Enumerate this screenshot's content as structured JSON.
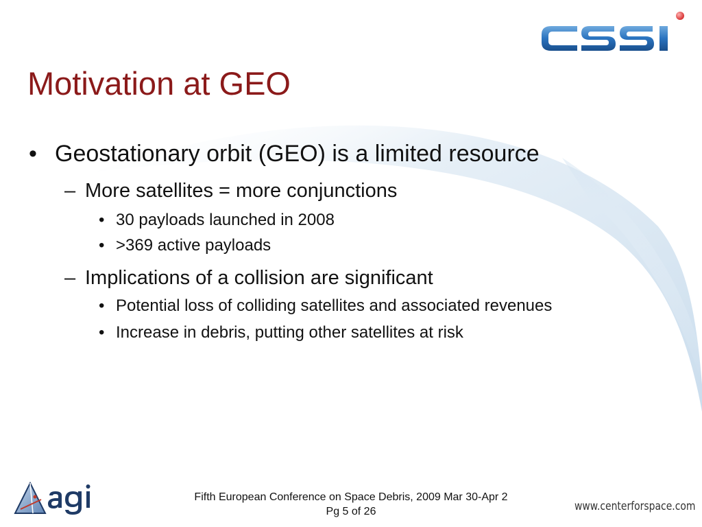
{
  "slide": {
    "title": "Motivation at GEO",
    "bullets": [
      {
        "level": 1,
        "marker": "•",
        "text": "Geostationary orbit (GEO) is a limited resource"
      },
      {
        "level": 2,
        "marker": "–",
        "text": "More satellites = more conjunctions"
      },
      {
        "level": 3,
        "marker": "•",
        "text": "30 payloads launched in 2008"
      },
      {
        "level": 3,
        "marker": "•",
        "text": ">369 active payloads"
      },
      {
        "level": 2,
        "marker": "–",
        "text": "Implications of a collision are significant"
      },
      {
        "level": 3,
        "marker": "•",
        "text": "Potential loss of colliding satellites and associated revenues"
      },
      {
        "level": 3,
        "marker": "•",
        "text": "Increase in debris, putting other satellites at risk"
      }
    ]
  },
  "logos": {
    "top_right": {
      "text": "CSSI",
      "color": "#2a78c2",
      "dot_color": "#e23a3a"
    },
    "bottom_left": {
      "text": "agi",
      "color": "#1f3b66"
    }
  },
  "footer": {
    "line1": "Fifth European Conference on Space Debris, 2009 Mar 30-Apr 2",
    "line2": "Pg 5 of 26",
    "website": "www.centerforspace.com"
  },
  "colors": {
    "title": "#8b1a1a",
    "text": "#111111",
    "swoosh": "#c9dcec"
  }
}
